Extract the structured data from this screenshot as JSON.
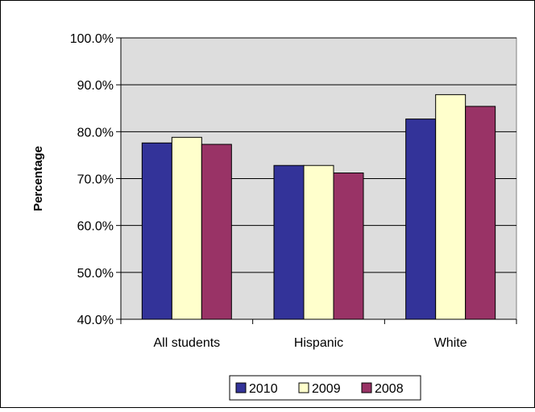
{
  "chart_data": {
    "type": "bar",
    "title": "",
    "xlabel": "",
    "ylabel": "Percentage",
    "categories": [
      "All students",
      "Hispanic",
      "White"
    ],
    "ylim": [
      40,
      100
    ],
    "ytick_values": [
      40,
      50,
      60,
      70,
      80,
      90,
      100
    ],
    "ytick_labels": [
      "40.0%",
      "50.0%",
      "60.0%",
      "70.0%",
      "80.0%",
      "90.0%",
      "100.0%"
    ],
    "grid": true,
    "legend_position": "bottom",
    "series": [
      {
        "name": "2010",
        "color": "#333399",
        "values": [
          77.6,
          72.8,
          82.7
        ]
      },
      {
        "name": "2009",
        "color": "#FFFFCC",
        "values": [
          78.8,
          72.8,
          87.9
        ]
      },
      {
        "name": "2008",
        "color": "#993366",
        "values": [
          77.3,
          71.2,
          85.4
        ]
      }
    ],
    "plot_background": "#DDDDDD"
  }
}
